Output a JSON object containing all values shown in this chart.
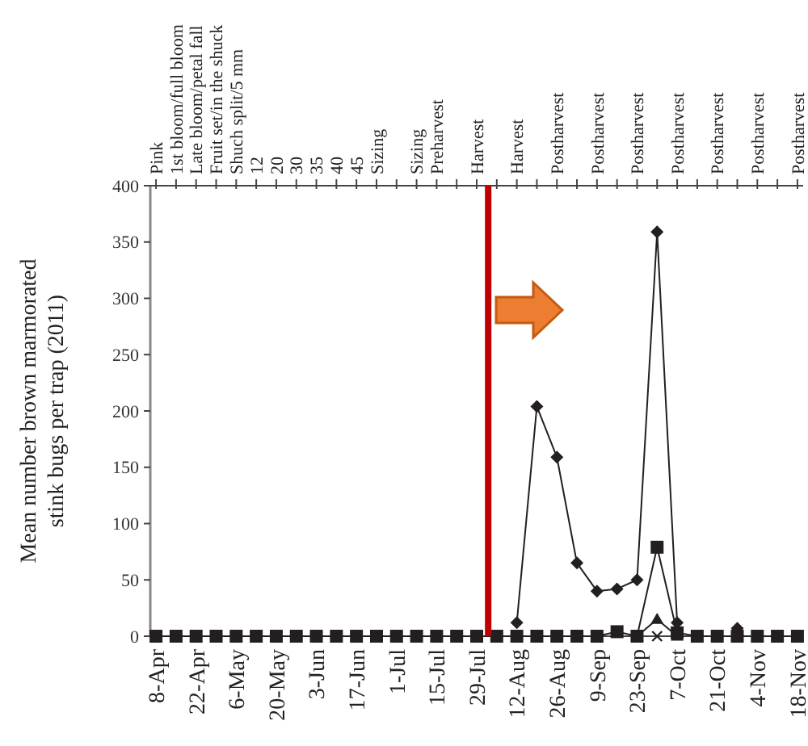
{
  "chart_data": {
    "type": "line",
    "ylabel": "Mean number brown marmorated\nstink bugs per trap (2011)",
    "x": [
      "2011-04-08",
      "2011-04-15",
      "2011-04-22",
      "2011-04-29",
      "2011-05-06",
      "2011-05-13",
      "2011-05-20",
      "2011-05-27",
      "2011-06-03",
      "2011-06-10",
      "2011-06-17",
      "2011-06-24",
      "2011-07-01",
      "2011-07-08",
      "2011-07-15",
      "2011-07-22",
      "2011-07-29",
      "2011-08-05",
      "2011-08-12",
      "2011-08-19",
      "2011-08-26",
      "2011-09-02",
      "2011-09-09",
      "2011-09-16",
      "2011-09-23",
      "2011-09-30",
      "2011-10-07",
      "2011-10-14",
      "2011-10-21",
      "2011-10-28",
      "2011-11-04",
      "2011-11-11",
      "2011-11-18"
    ],
    "series": [
      {
        "color": "#231f20",
        "marker": "diamond",
        "values": [
          null,
          null,
          null,
          null,
          null,
          null,
          null,
          null,
          null,
          null,
          null,
          null,
          null,
          null,
          null,
          null,
          null,
          null,
          12,
          204,
          159,
          65,
          40,
          42,
          50,
          359,
          12,
          null,
          null,
          7,
          null,
          null,
          null
        ]
      },
      {
        "color": "#231f20",
        "marker": "square",
        "values": [
          0,
          0,
          0,
          0,
          0,
          0,
          0,
          0,
          0,
          0,
          0,
          0,
          0,
          0,
          0,
          0,
          0,
          0,
          0,
          0,
          0,
          0,
          0,
          4,
          0,
          79,
          3,
          0,
          0,
          0,
          0,
          0,
          0
        ]
      },
      {
        "color": "#231f20",
        "marker": "triangle",
        "values": [
          null,
          null,
          null,
          null,
          null,
          null,
          null,
          null,
          null,
          null,
          null,
          null,
          null,
          null,
          null,
          null,
          null,
          null,
          null,
          null,
          null,
          null,
          null,
          null,
          0,
          15,
          0,
          null,
          null,
          null,
          null,
          null,
          null
        ]
      },
      {
        "color": "#231f20",
        "marker": "cross",
        "values": [
          null,
          null,
          null,
          null,
          null,
          null,
          null,
          null,
          null,
          null,
          null,
          null,
          null,
          null,
          null,
          null,
          null,
          null,
          null,
          null,
          null,
          null,
          null,
          null,
          null,
          0,
          null,
          null,
          null,
          null,
          null,
          null,
          null
        ]
      }
    ],
    "xlim": [
      "2011-04-06",
      "2011-11-20"
    ],
    "xticks": [
      {
        "value": "2011-04-08",
        "label": "8-Apr"
      },
      {
        "value": "2011-04-22",
        "label": "22-Apr"
      },
      {
        "value": "2011-05-06",
        "label": "6-May"
      },
      {
        "value": "2011-05-20",
        "label": "20-May"
      },
      {
        "value": "2011-06-03",
        "label": "3-Jun"
      },
      {
        "value": "2011-06-17",
        "label": "17-Jun"
      },
      {
        "value": "2011-07-01",
        "label": "1-Jul"
      },
      {
        "value": "2011-07-15",
        "label": "15-Jul"
      },
      {
        "value": "2011-07-29",
        "label": "29-Jul"
      },
      {
        "value": "2011-08-12",
        "label": "12-Aug"
      },
      {
        "value": "2011-08-26",
        "label": "26-Aug"
      },
      {
        "value": "2011-09-09",
        "label": "9-Sep"
      },
      {
        "value": "2011-09-23",
        "label": "23-Sep"
      },
      {
        "value": "2011-10-07",
        "label": "7-Oct"
      },
      {
        "value": "2011-10-21",
        "label": "21-Oct"
      },
      {
        "value": "2011-11-04",
        "label": "4-Nov"
      },
      {
        "value": "2011-11-18",
        "label": "18-Nov"
      }
    ],
    "x2lim": [
      "2011-04-06",
      "2011-11-20"
    ],
    "x2ticks": [
      {
        "value": "2011-04-08",
        "label": "Pink"
      },
      {
        "value": "2011-04-15",
        "label": "1st bloom/full bloom"
      },
      {
        "value": "2011-04-22",
        "label": "Late bloom/petal fall"
      },
      {
        "value": "2011-04-29",
        "label": "Fruit set/in the shuck"
      },
      {
        "value": "2011-05-06",
        "label": "Shuch split/5 mm"
      },
      {
        "value": "2011-05-13",
        "label": "12"
      },
      {
        "value": "2011-05-20",
        "label": "20"
      },
      {
        "value": "2011-05-27",
        "label": "30"
      },
      {
        "value": "2011-06-03",
        "label": "35"
      },
      {
        "value": "2011-06-10",
        "label": "40"
      },
      {
        "value": "2011-06-17",
        "label": "45"
      },
      {
        "value": "2011-06-24",
        "label": "Sizing"
      },
      {
        "value": "2011-07-01",
        "label": null
      },
      {
        "value": "2011-07-08",
        "label": "Sizing"
      },
      {
        "value": "2011-07-15",
        "label": "Preharvest"
      },
      {
        "value": "2011-07-22",
        "label": null
      },
      {
        "value": "2011-07-29",
        "label": "Harvest"
      },
      {
        "value": "2011-08-05",
        "label": null
      },
      {
        "value": "2011-08-12",
        "label": "Harvest"
      },
      {
        "value": "2011-08-19",
        "label": null
      },
      {
        "value": "2011-08-26",
        "label": "Postharvest"
      },
      {
        "value": "2011-09-02",
        "label": null
      },
      {
        "value": "2011-09-09",
        "label": "Postharvest"
      },
      {
        "value": "2011-09-16",
        "label": null
      },
      {
        "value": "2011-09-23",
        "label": "Postharvest"
      },
      {
        "value": "2011-09-30",
        "label": null
      },
      {
        "value": "2011-10-07",
        "label": "Postharvest"
      },
      {
        "value": "2011-10-14",
        "label": null
      },
      {
        "value": "2011-10-21",
        "label": "Postharvest"
      },
      {
        "value": "2011-10-28",
        "label": null
      },
      {
        "value": "2011-11-04",
        "label": "Postharvest"
      },
      {
        "value": "2011-11-11",
        "label": null
      },
      {
        "value": "2011-11-18",
        "label": "Postharvest"
      }
    ],
    "ylim": [
      0,
      400
    ],
    "yticks": [
      0,
      50,
      100,
      150,
      200,
      250,
      300,
      350,
      400
    ],
    "ref_lines": [
      {
        "axis": "x",
        "value": "2011-08-02",
        "color": "#c00000"
      }
    ],
    "grid": false
  }
}
